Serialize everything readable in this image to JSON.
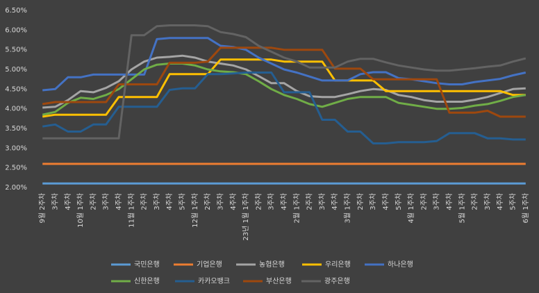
{
  "chart_data": {
    "type": "line",
    "categories": [
      "9월 2주차",
      "3주차",
      "4주차",
      "10월 1주차",
      "2주차",
      "3주차",
      "4주차",
      "11월 1주차",
      "2주차",
      "3주차",
      "4주차",
      "5주차",
      "12월 1주차",
      "2주차",
      "3주차",
      "4주차",
      "23년 1월 1주차",
      "2주차",
      "3주차",
      "4주차",
      "2월 1주차",
      "2주차",
      "3주차",
      "4주차",
      "3월 1주차",
      "2주차",
      "3주차",
      "4주차",
      "5주차",
      "4월 1주차",
      "2주차",
      "3주차",
      "4주차",
      "5월 1주차",
      "2주차",
      "3주차",
      "4주차",
      "5주차",
      "6월 1주차"
    ],
    "ylim": [
      2.0,
      6.5
    ],
    "yticks": [
      {
        "value": 2.0,
        "label": "2.00%"
      },
      {
        "value": 2.5,
        "label": "2.50%"
      },
      {
        "value": 3.0,
        "label": "3.00%"
      },
      {
        "value": 3.5,
        "label": "3.50%"
      },
      {
        "value": 4.0,
        "label": "4.00%"
      },
      {
        "value": 4.5,
        "label": "4.50%"
      },
      {
        "value": 5.0,
        "label": "5.00%"
      },
      {
        "value": 5.5,
        "label": "5.50%"
      },
      {
        "value": 6.0,
        "label": "6.00%"
      },
      {
        "value": 6.5,
        "label": "6.50%"
      }
    ],
    "grid": false,
    "legend": "bottom",
    "series": [
      {
        "name": "국민은행",
        "color": "#5b9bd5",
        "values": [
          2.1,
          2.1,
          2.1,
          2.1,
          2.1,
          2.1,
          2.1,
          2.1,
          2.1,
          2.1,
          2.1,
          2.1,
          2.1,
          2.1,
          2.1,
          2.1,
          2.1,
          2.1,
          2.1,
          2.1,
          2.1,
          2.1,
          2.1,
          2.1,
          2.1,
          2.1,
          2.1,
          2.1,
          2.1,
          2.1,
          2.1,
          2.1,
          2.1,
          2.1,
          2.1,
          2.1,
          2.1,
          2.1,
          2.1
        ]
      },
      {
        "name": "기업은행",
        "color": "#ed7d31",
        "values": [
          2.6,
          2.6,
          2.6,
          2.6,
          2.6,
          2.6,
          2.6,
          2.6,
          2.6,
          2.6,
          2.6,
          2.6,
          2.6,
          2.6,
          2.6,
          2.6,
          2.6,
          2.6,
          2.6,
          2.6,
          2.6,
          2.6,
          2.6,
          2.6,
          2.6,
          2.6,
          2.6,
          2.6,
          2.6,
          2.6,
          2.6,
          2.6,
          2.6,
          2.6,
          2.6,
          2.6,
          2.6,
          2.6,
          2.6
        ]
      },
      {
        "name": "농협은행",
        "color": "#a5a5a5",
        "values": [
          4.03,
          4.05,
          4.22,
          4.45,
          4.42,
          4.53,
          4.7,
          5.0,
          5.2,
          5.3,
          5.32,
          5.35,
          5.3,
          5.2,
          5.15,
          5.1,
          5.0,
          4.83,
          4.65,
          4.65,
          4.45,
          4.32,
          4.3,
          4.3,
          4.37,
          4.45,
          4.5,
          4.48,
          4.35,
          4.3,
          4.22,
          4.18,
          4.18,
          4.18,
          4.23,
          4.3,
          4.4,
          4.5,
          4.52
        ]
      },
      {
        "name": "우리은행",
        "color": "#ffc000",
        "values": [
          3.8,
          3.85,
          3.85,
          3.85,
          3.85,
          3.85,
          4.3,
          4.3,
          4.3,
          4.3,
          4.88,
          4.88,
          4.88,
          4.88,
          5.25,
          5.25,
          5.25,
          5.25,
          5.25,
          5.2,
          5.2,
          5.2,
          5.2,
          4.72,
          4.72,
          4.72,
          4.72,
          4.45,
          4.45,
          4.45,
          4.45,
          4.45,
          4.45,
          4.45,
          4.45,
          4.45,
          4.45,
          4.35,
          4.35
        ]
      },
      {
        "name": "하나은행",
        "color": "#4472c4",
        "values": [
          4.47,
          4.5,
          4.8,
          4.8,
          4.87,
          4.87,
          4.87,
          4.87,
          4.87,
          5.77,
          5.8,
          5.8,
          5.8,
          5.8,
          5.6,
          5.57,
          5.5,
          5.3,
          5.15,
          5.0,
          4.92,
          4.82,
          4.72,
          4.72,
          4.72,
          4.88,
          4.93,
          4.93,
          4.78,
          4.75,
          4.7,
          4.65,
          4.62,
          4.62,
          4.68,
          4.72,
          4.76,
          4.85,
          4.92
        ]
      },
      {
        "name": "신한은행",
        "color": "#70ad47",
        "values": [
          3.85,
          3.92,
          4.15,
          4.28,
          4.25,
          4.35,
          4.5,
          4.75,
          5.0,
          5.12,
          5.15,
          5.15,
          5.1,
          5.0,
          4.95,
          4.93,
          4.88,
          4.7,
          4.5,
          4.35,
          4.25,
          4.12,
          4.05,
          4.15,
          4.25,
          4.3,
          4.3,
          4.3,
          4.15,
          4.1,
          4.05,
          4.0,
          4.0,
          4.02,
          4.08,
          4.12,
          4.2,
          4.3,
          4.35
        ]
      },
      {
        "name": "카카오뱅크",
        "color": "#255e91",
        "values": [
          3.55,
          3.6,
          3.42,
          3.42,
          3.6,
          3.6,
          4.05,
          4.05,
          4.05,
          4.05,
          4.48,
          4.52,
          4.52,
          4.88,
          4.88,
          4.9,
          4.92,
          4.92,
          4.92,
          4.42,
          4.42,
          4.42,
          3.72,
          3.72,
          3.42,
          3.42,
          3.12,
          3.12,
          3.15,
          3.15,
          3.15,
          3.18,
          3.38,
          3.38,
          3.38,
          3.25,
          3.25,
          3.22,
          3.22
        ]
      },
      {
        "name": "부산은행",
        "color": "#9e480e",
        "values": [
          4.12,
          4.17,
          4.17,
          4.17,
          4.17,
          4.17,
          4.62,
          4.62,
          4.62,
          4.62,
          5.17,
          5.17,
          5.17,
          5.2,
          5.55,
          5.55,
          5.55,
          5.55,
          5.55,
          5.5,
          5.5,
          5.5,
          5.5,
          5.02,
          5.02,
          5.02,
          4.75,
          4.75,
          4.75,
          4.75,
          4.75,
          4.75,
          3.9,
          3.9,
          3.9,
          3.95,
          3.8,
          3.8,
          3.8
        ]
      },
      {
        "name": "광주은행",
        "color": "#636363",
        "values": [
          3.25,
          3.25,
          3.25,
          3.25,
          3.25,
          3.25,
          3.25,
          5.87,
          5.87,
          6.1,
          6.12,
          6.12,
          6.12,
          6.1,
          5.95,
          5.9,
          5.82,
          5.6,
          5.45,
          5.3,
          5.2,
          5.05,
          5.05,
          5.05,
          5.2,
          5.27,
          5.27,
          5.18,
          5.1,
          5.05,
          5.0,
          4.97,
          4.97,
          5.0,
          5.03,
          5.07,
          5.1,
          5.2,
          5.28
        ]
      }
    ]
  }
}
